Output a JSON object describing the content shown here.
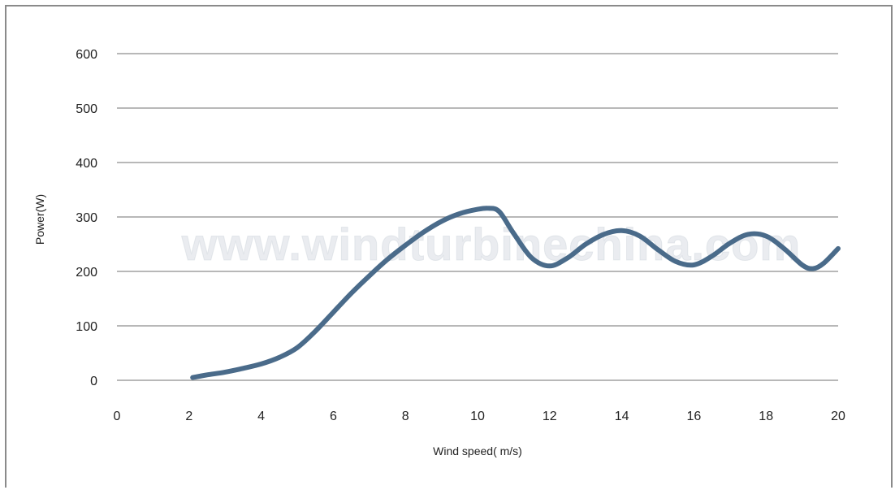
{
  "chart_data": {
    "type": "line",
    "title": "",
    "xlabel": "Wind speed( m/s)",
    "ylabel": "Power(W)",
    "xlim": [
      0,
      20
    ],
    "ylim": [
      0,
      600
    ],
    "x_ticks": [
      "0",
      "2",
      "4",
      "6",
      "8",
      "10",
      "12",
      "14",
      "16",
      "18",
      "20"
    ],
    "y_ticks": [
      "0",
      "100",
      "200",
      "300",
      "400",
      "500",
      "600"
    ],
    "grid": "horizontal",
    "legend": "none",
    "series_color": "#4a6b8a",
    "series": [
      {
        "x": [
          2.1,
          2.5,
          3.0,
          3.5,
          4.0,
          4.5,
          5.0,
          5.5,
          6.0,
          6.5,
          7.0,
          7.5,
          8.0,
          8.5,
          9.0,
          9.5,
          10.0,
          10.3,
          10.6,
          11.0,
          11.5,
          12.0,
          12.5,
          13.0,
          13.5,
          14.0,
          14.5,
          15.0,
          15.5,
          16.0,
          16.5,
          17.0,
          17.5,
          18.0,
          18.5,
          19.0,
          19.3,
          19.6,
          20.0
        ],
        "values": [
          5,
          10,
          15,
          22,
          30,
          42,
          60,
          90,
          125,
          160,
          192,
          222,
          248,
          272,
          292,
          306,
          314,
          316,
          310,
          270,
          225,
          210,
          225,
          250,
          268,
          275,
          265,
          240,
          218,
          212,
          228,
          252,
          268,
          265,
          242,
          212,
          205,
          215,
          242
        ]
      }
    ],
    "watermark": "www.windturbinechina.com"
  }
}
